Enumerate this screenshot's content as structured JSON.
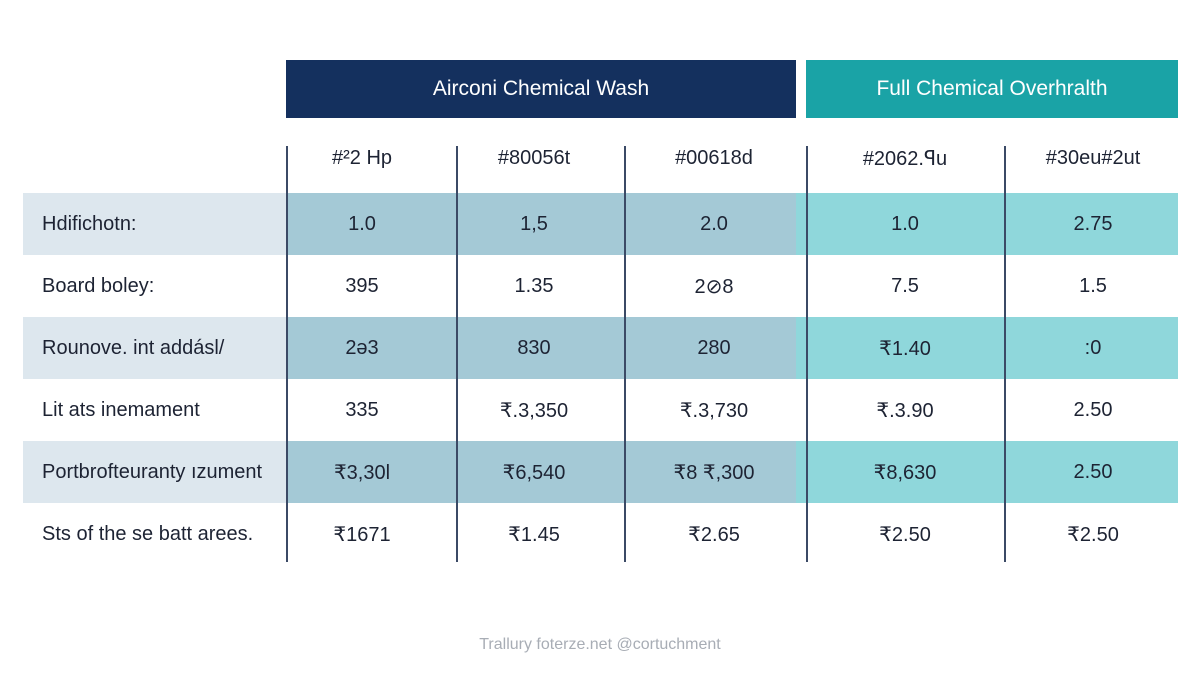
{
  "chart_data": {
    "type": "table",
    "column_groups": [
      {
        "label": "Airconi Chemical Wash",
        "color": "#14305e"
      },
      {
        "label": "Full Chemical Overhralth",
        "color": "#1aa3a6"
      }
    ],
    "columns": [
      "#²2 Hp",
      "#80056t",
      "#00618d",
      "#2062.ꟼu",
      "#30eu#2ut"
    ],
    "rows": [
      {
        "label": "Hdifichotn:",
        "values": [
          "1.0",
          "1,5",
          "2.0",
          "1.0",
          "2.75"
        ]
      },
      {
        "label": "Board boley:",
        "values": [
          "395",
          "1.35",
          "2⊘8",
          "7.5",
          "1.5"
        ]
      },
      {
        "label": "Rounove. int addásl/",
        "values": [
          "2ǝ3",
          "830",
          "280",
          "₹1.40",
          ":0"
        ]
      },
      {
        "label": "Lit ats inemament",
        "values": [
          "335",
          "₹.3,350",
          "₹.3,730",
          "₹.3.90",
          "2.50"
        ]
      },
      {
        "label": "Portbrofteurantу ızument",
        "values": [
          "₹3,30l",
          "₹6,540",
          "₹8 ₹,300",
          "₹8,630",
          "2.50"
        ]
      },
      {
        "label": "Sts of the se batt arees.",
        "values": [
          "₹1671",
          "₹1.45",
          "₹2.65",
          "₹2.50",
          "₹2.50"
        ]
      }
    ],
    "shaded_rows": [
      0,
      2,
      4
    ],
    "colors": {
      "label_band": "#dde7ee",
      "group1_band": "#a4c9d6",
      "group2_band": "#8fd7db",
      "divider": "#3b4a66"
    }
  },
  "footer": "Trallury foterze.net @cortuchment"
}
